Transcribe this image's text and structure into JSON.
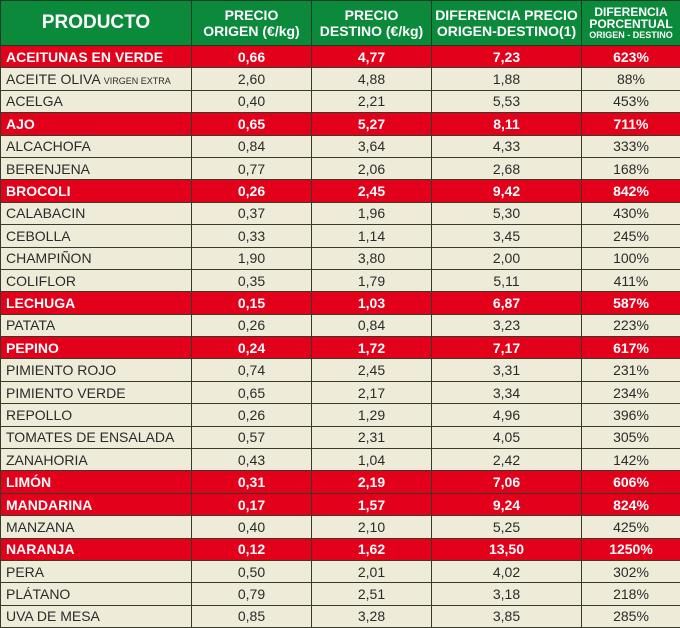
{
  "header": {
    "producto": "PRODUCTO",
    "precio_origen": [
      "PRECIO",
      "ORIGEN (€/kg)"
    ],
    "precio_destino": [
      "PRECIO",
      "DESTINO (€/kg)"
    ],
    "diferencia": [
      "DIFERENCIA PRECIO",
      "ORIGEN-DESTINO(1)"
    ],
    "porcentual": [
      "DIFERENCIA",
      "PORCENTUAL",
      "ORIGEN - DESTINO"
    ]
  },
  "colors": {
    "header_bg": "#0b8a3b",
    "highlight_bg": "#e2001a",
    "row_bg": "#eeecd8"
  },
  "chart_data": {
    "type": "table",
    "columns": [
      "PRODUCTO",
      "PRECIO ORIGEN (€/kg)",
      "PRECIO DESTINO (€/kg)",
      "DIFERENCIA PRECIO ORIGEN-DESTINO(1)",
      "DIFERENCIA PORCENTUAL ORIGEN - DESTINO"
    ],
    "rows": [
      {
        "name": "ACEITUNAS EN VERDE",
        "origen": "0,66",
        "destino": "4,77",
        "dif": "7,23",
        "pct": "623%",
        "highlight": true
      },
      {
        "name": "ACEITE OLIVA",
        "sub": "VIRGEN EXTRA",
        "origen": "2,60",
        "destino": "4,88",
        "dif": "1,88",
        "pct": "88%",
        "highlight": false
      },
      {
        "name": "ACELGA",
        "origen": "0,40",
        "destino": "2,21",
        "dif": "5,53",
        "pct": "453%",
        "highlight": false
      },
      {
        "name": "AJO",
        "origen": "0,65",
        "destino": "5,27",
        "dif": "8,11",
        "pct": "711%",
        "highlight": true
      },
      {
        "name": "ALCACHOFA",
        "origen": "0,84",
        "destino": "3,64",
        "dif": "4,33",
        "pct": "333%",
        "highlight": false
      },
      {
        "name": "BERENJENA",
        "origen": "0,77",
        "destino": "2,06",
        "dif": "2,68",
        "pct": "168%",
        "highlight": false
      },
      {
        "name": "BROCOLI",
        "origen": "0,26",
        "destino": "2,45",
        "dif": "9,42",
        "pct": "842%",
        "highlight": true
      },
      {
        "name": "CALABACIN",
        "origen": "0,37",
        "destino": "1,96",
        "dif": "5,30",
        "pct": "430%",
        "highlight": false
      },
      {
        "name": "CEBOLLA",
        "origen": "0,33",
        "destino": "1,14",
        "dif": "3,45",
        "pct": "245%",
        "highlight": false
      },
      {
        "name": "CHAMPIÑON",
        "origen": "1,90",
        "destino": "3,80",
        "dif": "2,00",
        "pct": "100%",
        "highlight": false
      },
      {
        "name": "COLIFLOR",
        "origen": "0,35",
        "destino": "1,79",
        "dif": "5,11",
        "pct": "411%",
        "highlight": false
      },
      {
        "name": "LECHUGA",
        "origen": "0,15",
        "destino": "1,03",
        "dif": "6,87",
        "pct": "587%",
        "highlight": true
      },
      {
        "name": "PATATA",
        "origen": "0,26",
        "destino": "0,84",
        "dif": "3,23",
        "pct": "223%",
        "highlight": false
      },
      {
        "name": "PEPINO",
        "origen": "0,24",
        "destino": "1,72",
        "dif": "7,17",
        "pct": "617%",
        "highlight": true
      },
      {
        "name": "PIMIENTO ROJO",
        "origen": "0,74",
        "destino": "2,45",
        "dif": "3,31",
        "pct": "231%",
        "highlight": false
      },
      {
        "name": "PIMIENTO VERDE",
        "origen": "0,65",
        "destino": "2,17",
        "dif": "3,34",
        "pct": "234%",
        "highlight": false
      },
      {
        "name": "REPOLLO",
        "origen": "0,26",
        "destino": "1,29",
        "dif": "4,96",
        "pct": "396%",
        "highlight": false
      },
      {
        "name": "TOMATES DE ENSALADA",
        "origen": "0,57",
        "destino": "2,31",
        "dif": "4,05",
        "pct": "305%",
        "highlight": false
      },
      {
        "name": "ZANAHORIA",
        "origen": "0,43",
        "destino": "1,04",
        "dif": "2,42",
        "pct": "142%",
        "highlight": false
      },
      {
        "name": "LIMÓN",
        "origen": "0,31",
        "destino": "2,19",
        "dif": "7,06",
        "pct": "606%",
        "highlight": true
      },
      {
        "name": "MANDARINA",
        "origen": "0,17",
        "destino": "1,57",
        "dif": "9,24",
        "pct": "824%",
        "highlight": true
      },
      {
        "name": "MANZANA",
        "origen": "0,40",
        "destino": "2,10",
        "dif": "5,25",
        "pct": "425%",
        "highlight": false
      },
      {
        "name": "NARANJA",
        "origen": "0,12",
        "destino": "1,62",
        "dif": "13,50",
        "pct": "1250%",
        "highlight": true
      },
      {
        "name": "PERA",
        "origen": "0,50",
        "destino": "2,01",
        "dif": "4,02",
        "pct": "302%",
        "highlight": false
      },
      {
        "name": "PLÁTANO",
        "origen": "0,79",
        "destino": "2,51",
        "dif": "3,18",
        "pct": "218%",
        "highlight": false
      },
      {
        "name": "UVA DE MESA",
        "origen": "0,85",
        "destino": "3,28",
        "dif": "3,85",
        "pct": "285%",
        "highlight": false
      }
    ]
  }
}
